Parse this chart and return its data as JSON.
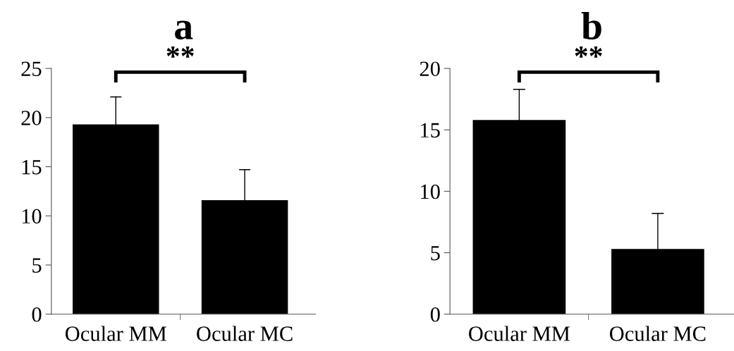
{
  "chart_data": [
    {
      "type": "bar",
      "title": "a",
      "categories": [
        "Ocular MM",
        "Ocular MC"
      ],
      "values": [
        19.3,
        11.6
      ],
      "color": "#000000",
      "errors": [
        [
          19.3,
          22.1
        ],
        [
          11.6,
          14.7
        ]
      ],
      "ylim": [
        0,
        25
      ],
      "yticks": [
        0,
        5,
        10,
        15,
        20,
        25
      ],
      "grid": false,
      "annotations": [
        "**"
      ]
    },
    {
      "type": "bar",
      "title": "b",
      "categories": [
        "Ocular MM",
        "Ocular MC"
      ],
      "values": [
        15.8,
        5.3
      ],
      "color": "#000000",
      "errors": [
        [
          15.8,
          18.3
        ],
        [
          5.3,
          8.2
        ]
      ],
      "ylim": [
        0,
        20
      ],
      "yticks": [
        0,
        5,
        10,
        15,
        20
      ],
      "grid": false,
      "annotations": [
        "**"
      ]
    }
  ]
}
